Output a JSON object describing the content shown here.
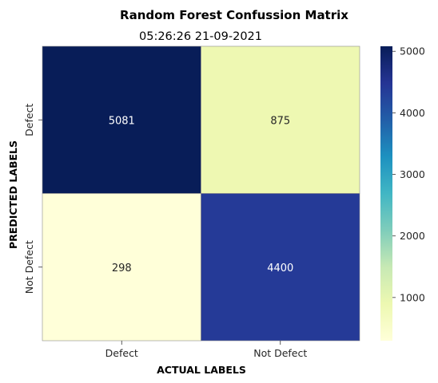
{
  "chart_data": {
    "type": "heatmap",
    "title": "Random Forest Confussion Matrix",
    "subtitle": "05:26:26 21-09-2021",
    "xlabel": "ACTUAL LABELS",
    "ylabel": "PREDICTED LABELS",
    "x_categories": [
      "Defect",
      "Not Defect"
    ],
    "y_categories": [
      "Defect",
      "Not Defect"
    ],
    "values": [
      [
        5081,
        875
      ],
      [
        298,
        4400
      ]
    ],
    "colorbar": {
      "colormap": "YlGnBu",
      "min": 298,
      "max": 5081,
      "ticks": [
        1000,
        2000,
        3000,
        4000,
        5000
      ],
      "tick_labels": [
        "1000",
        "2000",
        "3000",
        "4000",
        "5000"
      ]
    }
  }
}
